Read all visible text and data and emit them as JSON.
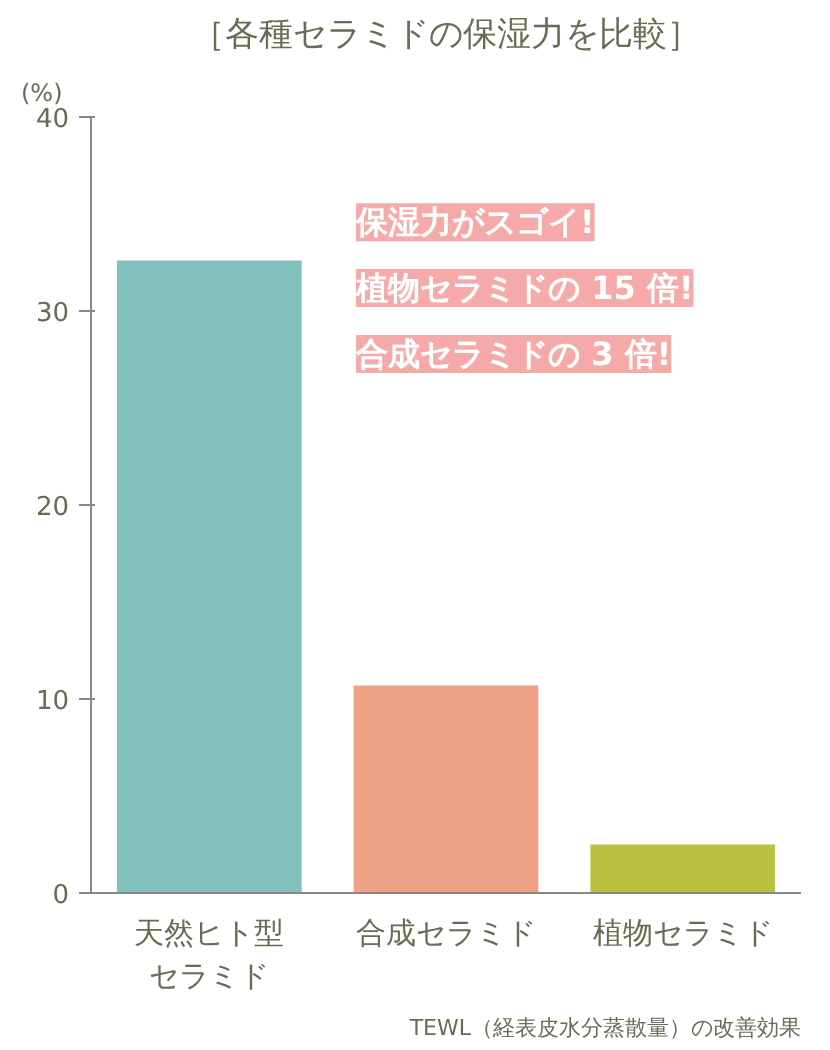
{
  "chart_data": {
    "type": "bar",
    "title": "［各種セラミドの保湿力を比較］",
    "ylabel": "(%)",
    "categories": [
      "天然ヒト型セラミド",
      "合成セラミド",
      "植物セラミド"
    ],
    "values": [
      32.6,
      10.7,
      2.5
    ],
    "colors": [
      "#82c0bd",
      "#eda082",
      "#bcc040"
    ],
    "ylim": [
      0,
      40
    ],
    "yticks": [
      0,
      10,
      20,
      30,
      40
    ],
    "grid": false,
    "annotations": [
      "保湿力がスゴイ!",
      "植物セラミドの 15 倍!",
      "合成セラミドの 3 倍!",
      "TEWL（経表皮水分蒸散量）の改善効果"
    ]
  }
}
